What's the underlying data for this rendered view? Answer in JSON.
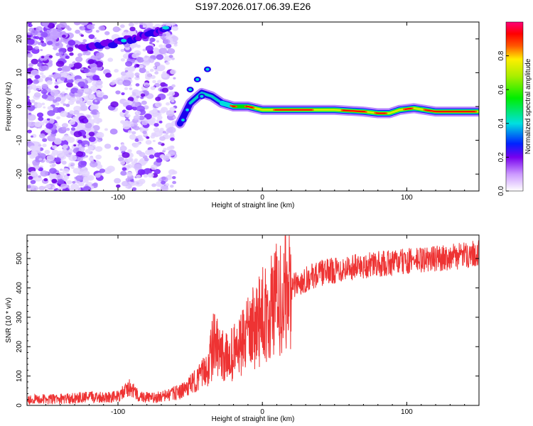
{
  "title": "S197.2026.017.06.39.E26",
  "chart_data": [
    {
      "type": "heatmap",
      "panel": "top",
      "xlabel": "Height of straight line (km)",
      "ylabel": "Frequency (Hz)",
      "xlim": [
        -163,
        150
      ],
      "ylim": [
        -25,
        25
      ],
      "xticks": [
        -100,
        0,
        100
      ],
      "yticks": [
        20,
        10,
        0,
        -10,
        -20
      ],
      "colorbar": {
        "label": "Normalized spectral amplitude",
        "range": [
          0,
          1
        ],
        "ticks": [
          "0.0",
          "0.2",
          "0.4",
          "0.6",
          "0.8"
        ]
      },
      "ridge": {
        "name": "Doppler ridge",
        "x": [
          -57,
          -50,
          -42,
          -35,
          -28,
          -20,
          -10,
          0,
          10,
          30,
          50,
          70,
          80,
          88,
          95,
          105,
          120,
          150
        ],
        "y": [
          -5,
          1,
          4,
          3,
          1,
          0,
          0,
          -1,
          -1,
          -1,
          -1,
          -1.5,
          -2,
          -2,
          -1,
          -0.5,
          -1.5,
          -1.5
        ]
      },
      "noise_region": {
        "x_start": -163,
        "x_end": -60,
        "y_range": [
          -25,
          25
        ]
      },
      "upper_streak": {
        "x": [
          -125,
          -100,
          -80,
          -65
        ],
        "y": [
          17,
          19,
          21,
          23.5
        ]
      }
    },
    {
      "type": "line",
      "panel": "bottom",
      "xlabel": "Height of straight line (km)",
      "ylabel": "SNR (10 * v/v)",
      "xlim": [
        -163,
        150
      ],
      "ylim": [
        0,
        580
      ],
      "xticks": [
        -100,
        0,
        100
      ],
      "yticks": [
        0,
        100,
        200,
        300,
        400,
        500
      ],
      "series": [
        {
          "name": "SNR",
          "color": "#ee3333",
          "x": [
            -163,
            -140,
            -120,
            -100,
            -92,
            -85,
            -75,
            -65,
            -55,
            -45,
            -38,
            -33,
            -30,
            -25,
            -20,
            -15,
            -10,
            -5,
            0,
            5,
            10,
            20,
            30,
            40,
            50,
            60,
            80,
            100,
            120,
            140,
            150
          ],
          "y": [
            20,
            22,
            28,
            30,
            60,
            30,
            25,
            35,
            50,
            90,
            130,
            220,
            170,
            160,
            180,
            200,
            240,
            270,
            300,
            330,
            360,
            400,
            430,
            450,
            460,
            470,
            480,
            490,
            500,
            510,
            520
          ]
        }
      ]
    }
  ]
}
